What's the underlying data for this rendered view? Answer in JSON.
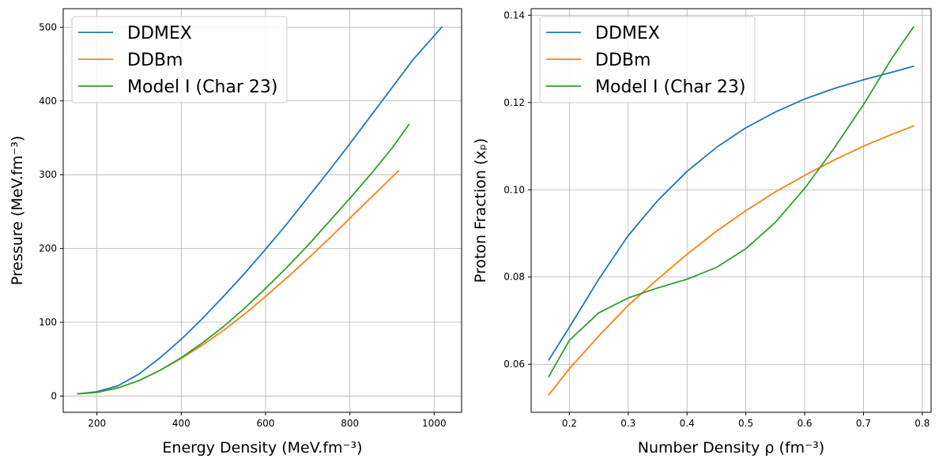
{
  "colors": {
    "DDMEX": "#1f77b4",
    "DDBm": "#ff7f0e",
    "Model I (Char 23)": "#2ca02c"
  },
  "chart_data": [
    {
      "type": "line",
      "xlabel": "Energy Density (MeV.fm⁻³)",
      "ylabel": "Pressure (MeV.fm⁻³)",
      "xlim": [
        120,
        1065
      ],
      "ylim": [
        -22,
        525
      ],
      "xticks": [
        200,
        400,
        600,
        800,
        1000
      ],
      "yticks": [
        0,
        100,
        200,
        300,
        400,
        500
      ],
      "grid": true,
      "legend": "top-left",
      "series": [
        {
          "name": "DDMEX",
          "color": "#1f77b4",
          "x": [
            155,
            200,
            250,
            300,
            350,
            400,
            450,
            500,
            550,
            600,
            650,
            700,
            750,
            800,
            850,
            900,
            950,
            1018
          ],
          "y": [
            3,
            6,
            14,
            30,
            52,
            77,
            105,
            135,
            166,
            199,
            233,
            269,
            305,
            342,
            380,
            418,
            456,
            500
          ]
        },
        {
          "name": "DDBm",
          "color": "#ff7f0e",
          "x": [
            155,
            200,
            250,
            300,
            350,
            400,
            450,
            500,
            550,
            600,
            650,
            700,
            750,
            800,
            850,
            915
          ],
          "y": [
            3,
            5,
            11,
            21,
            35,
            51,
            69,
            89,
            111,
            135,
            160,
            186,
            213,
            241,
            269,
            305
          ]
        },
        {
          "name": "Model I (Char 23)",
          "color": "#2ca02c",
          "x": [
            155,
            200,
            250,
            300,
            350,
            400,
            450,
            500,
            550,
            600,
            650,
            700,
            750,
            800,
            850,
            900,
            940
          ],
          "y": [
            3,
            5,
            11,
            21,
            35,
            52,
            72,
            94,
            119,
            146,
            174,
            204,
            236,
            268,
            301,
            336,
            368
          ]
        }
      ]
    },
    {
      "type": "line",
      "xlabel": "Number Density ρ (fm⁻³)",
      "ylabel": "Proton Fraction (xₚ)",
      "xlim": [
        0.135,
        0.815
      ],
      "ylim": [
        0.049,
        0.1415
      ],
      "xticks": [
        0.2,
        0.3,
        0.4,
        0.5,
        0.6,
        0.7,
        0.8
      ],
      "yticks": [
        0.06,
        0.08,
        0.1,
        0.12,
        0.14
      ],
      "ytick_labels": [
        "0.06",
        "0.08",
        "0.10",
        "0.12",
        "0.14"
      ],
      "grid": true,
      "legend": "top-left",
      "series": [
        {
          "name": "DDMEX",
          "color": "#1f77b4",
          "x": [
            0.165,
            0.2,
            0.25,
            0.3,
            0.35,
            0.4,
            0.45,
            0.5,
            0.55,
            0.6,
            0.65,
            0.7,
            0.75,
            0.785
          ],
          "y": [
            0.061,
            0.0685,
            0.0795,
            0.0895,
            0.0975,
            0.1042,
            0.1097,
            0.1142,
            0.1178,
            0.1208,
            0.1232,
            0.1252,
            0.127,
            0.1283
          ]
        },
        {
          "name": "DDBm",
          "color": "#ff7f0e",
          "x": [
            0.165,
            0.2,
            0.25,
            0.3,
            0.35,
            0.4,
            0.45,
            0.5,
            0.55,
            0.6,
            0.65,
            0.7,
            0.75,
            0.785
          ],
          "y": [
            0.053,
            0.059,
            0.0665,
            0.0735,
            0.0795,
            0.0852,
            0.0905,
            0.0952,
            0.0995,
            0.1033,
            0.1068,
            0.11,
            0.1128,
            0.1146
          ]
        },
        {
          "name": "Model I (Char 23)",
          "color": "#2ca02c",
          "x": [
            0.165,
            0.2,
            0.25,
            0.3,
            0.35,
            0.4,
            0.45,
            0.5,
            0.55,
            0.6,
            0.65,
            0.7,
            0.75,
            0.785
          ],
          "y": [
            0.0572,
            0.0655,
            0.0718,
            0.0752,
            0.0775,
            0.0795,
            0.0822,
            0.0865,
            0.0925,
            0.1003,
            0.1095,
            0.1195,
            0.1305,
            0.1373
          ]
        }
      ]
    }
  ]
}
